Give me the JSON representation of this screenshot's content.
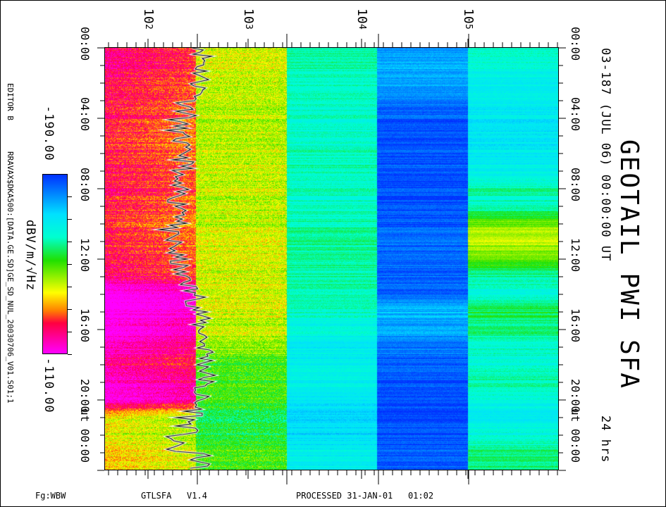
{
  "title": "GEOTAIL PWI SFA",
  "subtitle": "03-187 (JUL 06) 00:00:00 UT",
  "duration": "24 hrs",
  "editor": "EDITOR B",
  "file_path": "RRAVAX$DKA500:[DATA.GE.SD]GE_SD_NUL_20030706_V01.S01;1",
  "footer": {
    "flag": "Fg:WBW",
    "program": "GTLSFA   V1.4",
    "processed": "PROCESSED 31-JAN-01   01:02"
  },
  "colorbar": {
    "min_label": "-190.00",
    "max_label": "-110.00",
    "unit": "dBV/m/√Hz",
    "min": -190,
    "max": -110,
    "colors": [
      "#0030ff",
      "#00e0ff",
      "#20e000",
      "#ffff00",
      "#ff0040",
      "#ff00ff"
    ]
  },
  "chart_data": {
    "type": "heatmap",
    "title": "GEOTAIL PWI SFA",
    "x_axis": {
      "scale": "log",
      "tick_labels": [
        {
          "base": "10",
          "exp": "2"
        },
        {
          "base": "10",
          "exp": "3"
        },
        {
          "base": "10",
          "exp": "4"
        },
        {
          "base": "10",
          "exp": "5"
        }
      ]
    },
    "y_axis": {
      "range_hours": [
        0,
        24
      ],
      "tick_labels_left": [
        "00:00",
        "04:00",
        "08:00",
        "12:00",
        "16:00",
        "20:00",
        "ut 00:00"
      ],
      "tick_labels_right": [
        "00:00",
        "04:00",
        "08:00",
        "12:00",
        "16:00",
        "20:00",
        "ut 00:00"
      ]
    },
    "bands": 5,
    "hourly_levels_db": [
      [
        -125,
        -125,
        -127,
        -128,
        -128,
        -130,
        -130,
        -128,
        -127,
        -128,
        -130,
        -130,
        -128,
        -125,
        -112,
        -113,
        -115,
        -118,
        -125,
        -118,
        -116,
        -142,
        -145,
        -140
      ],
      [
        -140,
        -140,
        -141,
        -142,
        -142,
        -142,
        -142,
        -141,
        -141,
        -141,
        -141,
        -140,
        -140,
        -140,
        -140,
        -140,
        -141,
        -143,
        -152,
        -150,
        -150,
        -155,
        -155,
        -150
      ],
      [
        -160,
        -161,
        -162,
        -162,
        -163,
        -163,
        -162,
        -162,
        -162,
        -162,
        -160,
        -160,
        -160,
        -160,
        -161,
        -163,
        -165,
        -168,
        -168,
        -167,
        -170,
        -172,
        -172,
        -168
      ],
      [
        -180,
        -178,
        -178,
        -183,
        -186,
        -187,
        -187,
        -187,
        -187,
        -186,
        -185,
        -185,
        -185,
        -185,
        -185,
        -176,
        -178,
        -182,
        -186,
        -187,
        -187,
        -187,
        -187,
        -186
      ],
      [
        -162,
        -165,
        -168,
        -168,
        -170,
        -170,
        -170,
        -168,
        -160,
        -162,
        -145,
        -142,
        -148,
        -160,
        -165,
        -155,
        -158,
        -162,
        -165,
        -160,
        -165,
        -168,
        -165,
        -158
      ]
    ],
    "trace_hz": [
      360,
      340,
      330,
      250,
      200,
      210,
      230,
      180,
      200,
      230,
      160,
      180,
      200,
      260,
      310,
      330,
      360,
      380,
      380,
      330,
      300,
      250,
      180,
      330
    ]
  }
}
